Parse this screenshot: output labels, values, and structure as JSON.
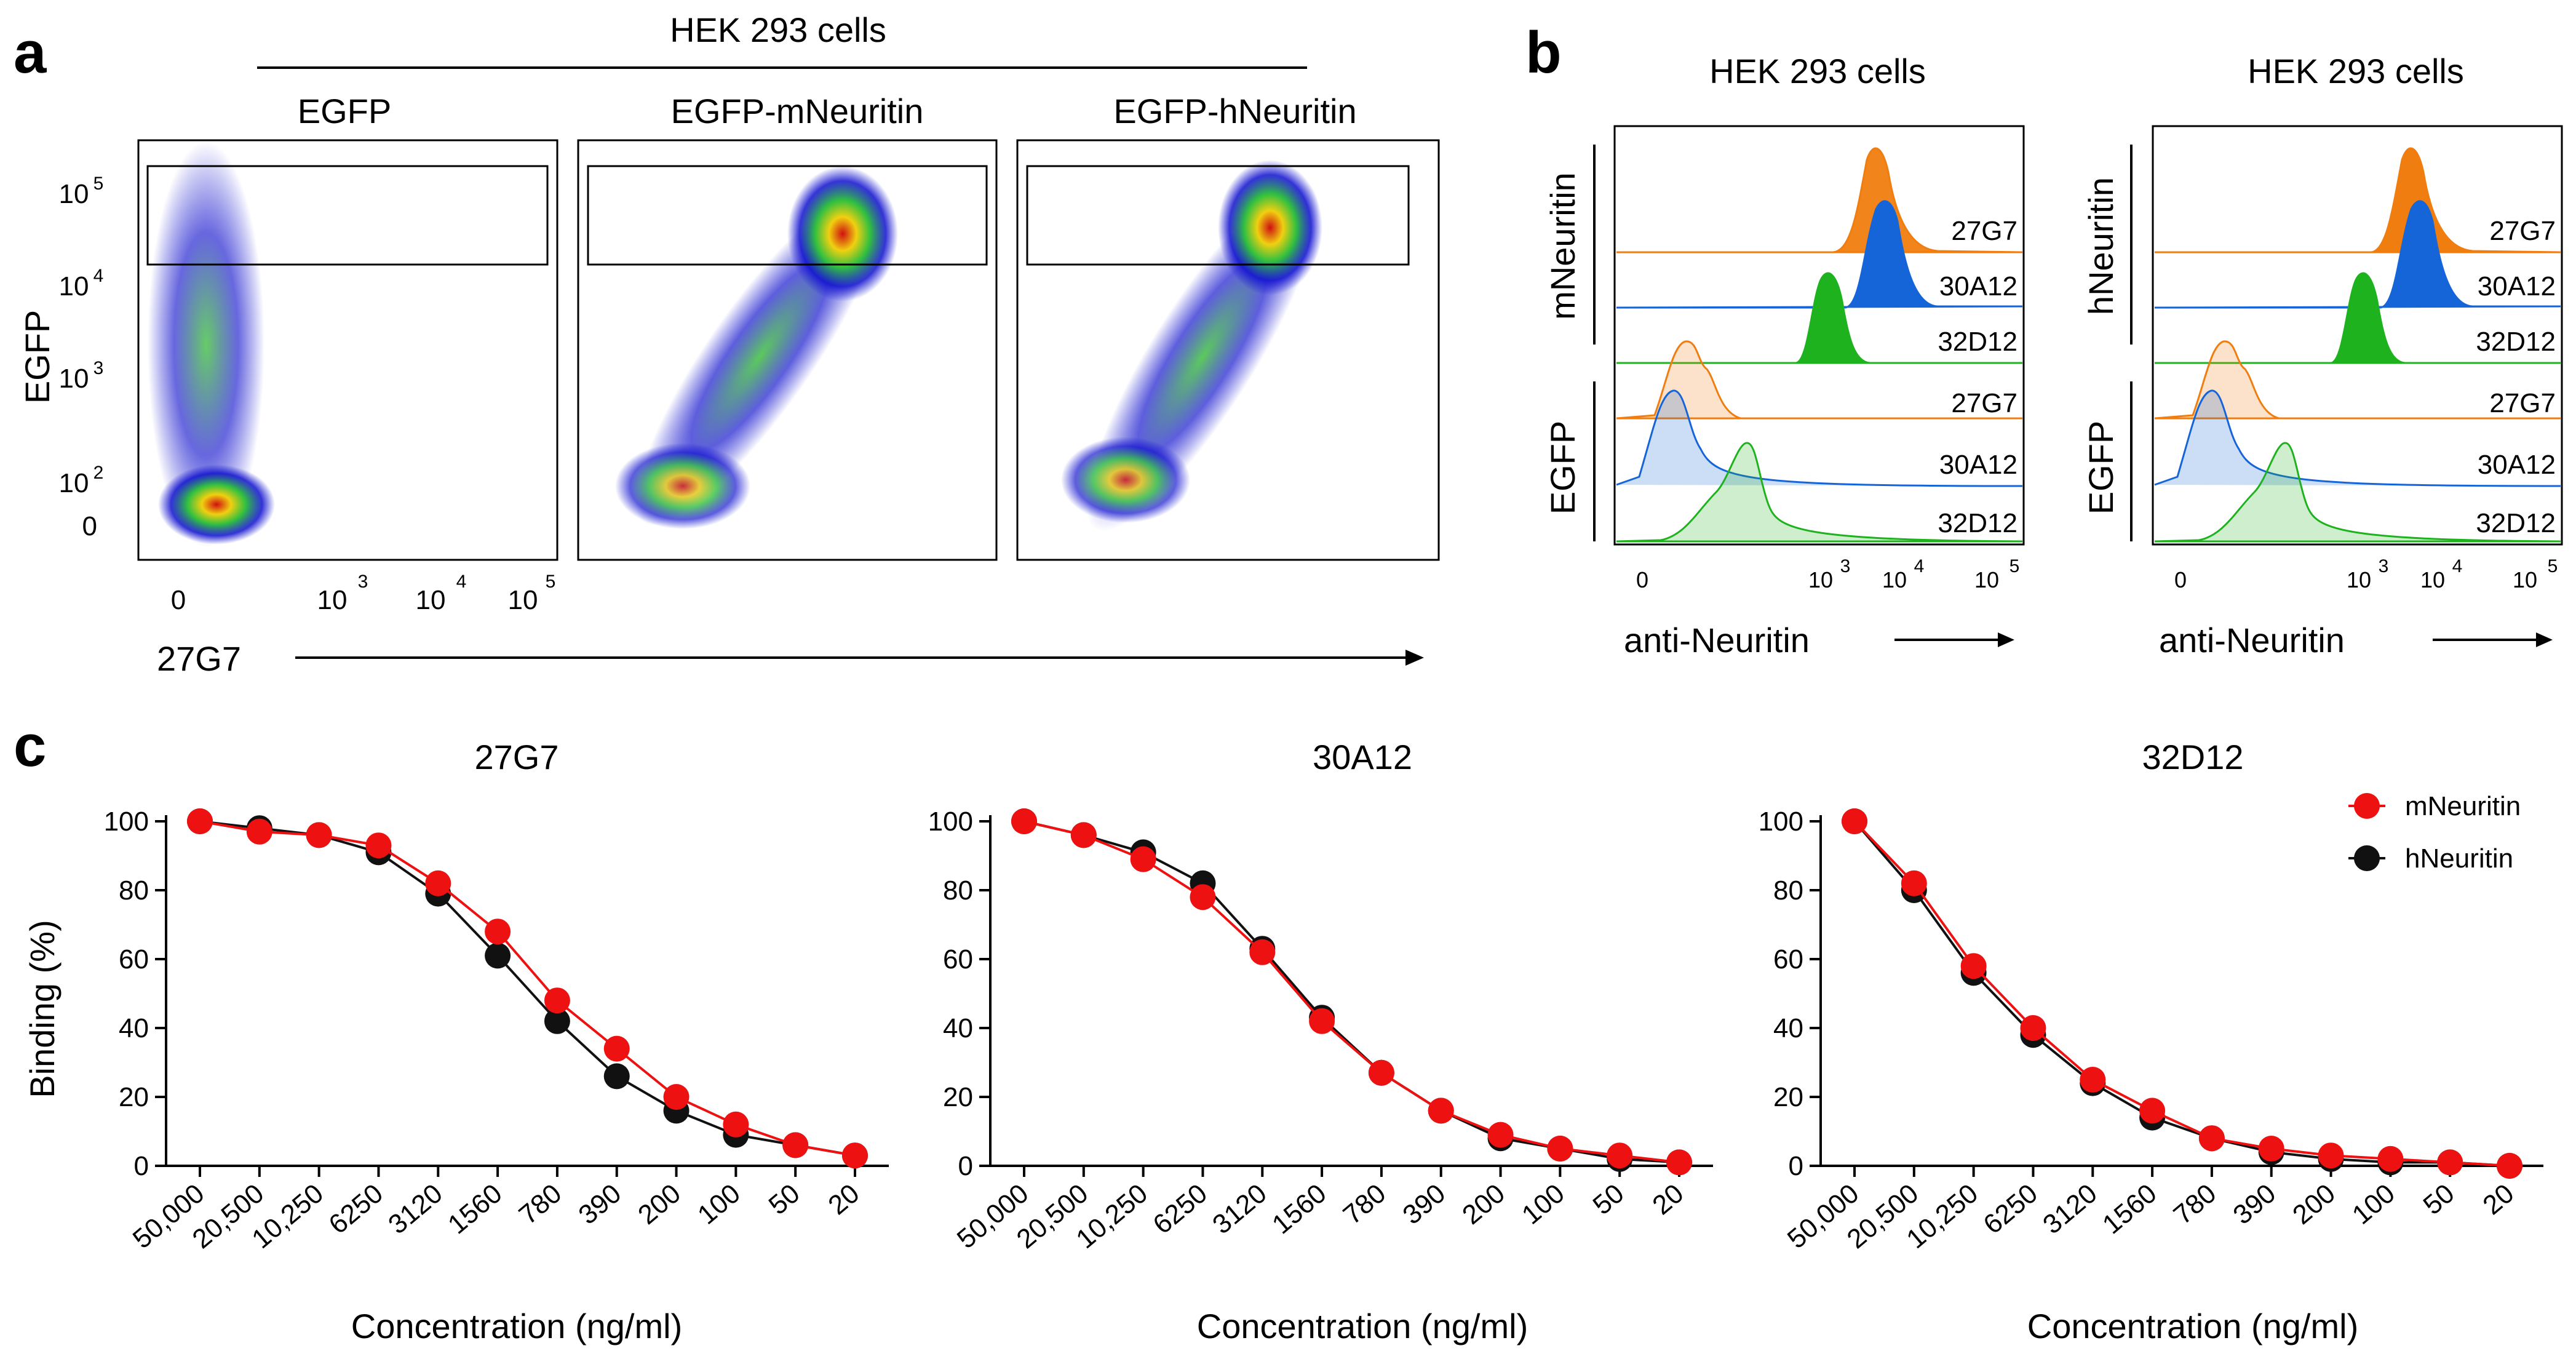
{
  "panels": {
    "a": {
      "letter": "a",
      "header": "HEK 293 cells",
      "plots": [
        {
          "title": "EGFP"
        },
        {
          "title": "EGFP-mNeuritin"
        },
        {
          "title": "EGFP-hNeuritin"
        }
      ],
      "y_label": "EGFP",
      "x_label": "27G7",
      "y_ticks": [
        "0",
        "10",
        "10",
        "10",
        "10"
      ],
      "y_tick_exps": [
        "",
        "2",
        "3",
        "4",
        "5"
      ],
      "x_ticks": [
        "0",
        "10",
        "10",
        "10"
      ],
      "x_tick_exps": [
        "",
        "3",
        "4",
        "5"
      ]
    },
    "b": {
      "letter": "b",
      "plots": [
        {
          "header": "HEK 293 cells",
          "group_top": "mNeuritin",
          "group_bottom": "EGFP"
        },
        {
          "header": "HEK 293 cells",
          "group_top": "hNeuritin",
          "group_bottom": "EGFP"
        }
      ],
      "row_labels": [
        "27G7",
        "30A12",
        "32D12",
        "27G7",
        "30A12",
        "32D12"
      ],
      "x_label": "anti-Neuritin",
      "x_ticks": [
        "0",
        "10",
        "10",
        "10"
      ],
      "x_tick_exps": [
        "",
        "3",
        "4",
        "5"
      ]
    },
    "c": {
      "letter": "c",
      "y_label": "Binding (%)",
      "x_label": "Concentration (ng/ml)",
      "legend": {
        "mNeuritin": "mNeuritin",
        "hNeuritin": "hNeuritin"
      },
      "y_ticks": [
        "0",
        "20",
        "40",
        "60",
        "80",
        "100"
      ]
    }
  },
  "colors": {
    "orange": "#f07d0f",
    "blue": "#1565d8",
    "green": "#1fb21f",
    "red": "#ee1111",
    "black": "#111111"
  },
  "chart_data": [
    {
      "type": "line",
      "title": "27G7",
      "xlabel": "Concentration (ng/ml)",
      "ylabel": "Binding (%)",
      "ylim": [
        0,
        100
      ],
      "categories": [
        "50,000",
        "20,500",
        "10,250",
        "6250",
        "3120",
        "1560",
        "780",
        "390",
        "200",
        "100",
        "50",
        "20"
      ],
      "series": [
        {
          "name": "mNeuritin",
          "values": [
            100,
            97,
            96,
            93,
            82,
            68,
            48,
            34,
            20,
            12,
            6,
            3
          ]
        },
        {
          "name": "hNeuritin",
          "values": [
            100,
            98,
            96,
            91,
            79,
            61,
            42,
            26,
            16,
            9,
            6,
            3
          ]
        }
      ]
    },
    {
      "type": "line",
      "title": "30A12",
      "xlabel": "Concentration (ng/ml)",
      "ylabel": "Binding (%)",
      "ylim": [
        0,
        100
      ],
      "categories": [
        "50,000",
        "20,500",
        "10,250",
        "6250",
        "3120",
        "1560",
        "780",
        "390",
        "200",
        "100",
        "50",
        "20"
      ],
      "series": [
        {
          "name": "mNeuritin",
          "values": [
            100,
            96,
            89,
            78,
            62,
            42,
            27,
            16,
            9,
            5,
            3,
            1
          ]
        },
        {
          "name": "hNeuritin",
          "values": [
            100,
            96,
            91,
            82,
            63,
            43,
            27,
            16,
            8,
            5,
            2,
            1
          ]
        }
      ]
    },
    {
      "type": "line",
      "title": "32D12",
      "xlabel": "Concentration (ng/ml)",
      "ylabel": "Binding (%)",
      "ylim": [
        0,
        100
      ],
      "categories": [
        "50,000",
        "20,500",
        "10,250",
        "6250",
        "3120",
        "1560",
        "780",
        "390",
        "200",
        "100",
        "50",
        "20"
      ],
      "series": [
        {
          "name": "mNeuritin",
          "values": [
            100,
            82,
            58,
            40,
            25,
            16,
            8,
            5,
            3,
            2,
            1,
            0
          ]
        },
        {
          "name": "hNeuritin",
          "values": [
            100,
            80,
            56,
            38,
            24,
            14,
            8,
            4,
            2,
            1,
            1,
            0
          ]
        }
      ]
    }
  ]
}
